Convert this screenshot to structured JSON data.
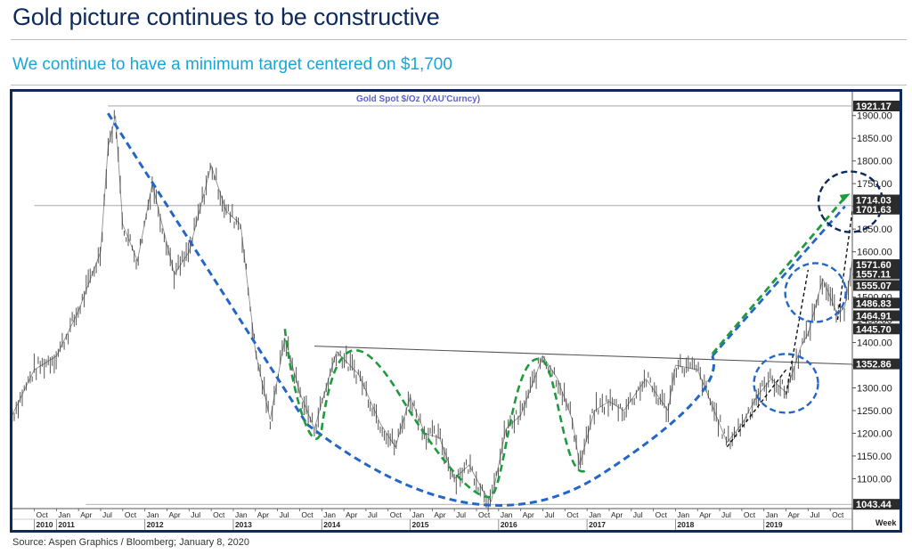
{
  "header": {
    "title": "Gold picture continues to be constructive",
    "subtitle": "We continue to have a minimum target centered on $1,700"
  },
  "footer": {
    "source": "Source: Aspen Graphics / Bloomberg; January 8, 2020"
  },
  "chart_data": {
    "type": "line",
    "title": "Gold  Spot      $/Oz  (XAU'Curncy)",
    "x_unit_label": "Week",
    "ylim": [
      1040,
      1925
    ],
    "y_ticks": [
      1100,
      1150,
      1200,
      1250,
      1300,
      1350,
      1400,
      1450,
      1500,
      1550,
      1600,
      1650,
      1700,
      1750,
      1800,
      1850,
      1900
    ],
    "y_tick_labels": [
      "1100.00",
      "1150.00",
      "1200.00",
      "1250.00",
      "1300.00",
      "1350.00",
      "1400.00",
      "1450.00",
      "1500.00",
      "1550.00",
      "1600.00",
      "1650.00",
      "1700.00",
      "1750.00",
      "1800.00",
      "1850.00",
      "1900.00"
    ],
    "price_labels": [
      "1921.17",
      "1714.03",
      "1701.63",
      "1571.60",
      "1557.11",
      "1555.07",
      "1486.83",
      "1464.91",
      "1445.70",
      "1352.86",
      "1043.44"
    ],
    "x_months": [
      {
        "x": "2010-10",
        "label": "Oct"
      },
      {
        "x": "2011-01",
        "label": "Jan"
      },
      {
        "x": "2011-04",
        "label": "Apr"
      },
      {
        "x": "2011-07",
        "label": "Jul"
      },
      {
        "x": "2011-10",
        "label": "Oct"
      },
      {
        "x": "2012-01",
        "label": "Jan"
      },
      {
        "x": "2012-04",
        "label": "Apr"
      },
      {
        "x": "2012-07",
        "label": "Jul"
      },
      {
        "x": "2012-10",
        "label": "Oct"
      },
      {
        "x": "2013-01",
        "label": "Jan"
      },
      {
        "x": "2013-04",
        "label": "Apr"
      },
      {
        "x": "2013-07",
        "label": "Jul"
      },
      {
        "x": "2013-10",
        "label": "Oct"
      },
      {
        "x": "2014-01",
        "label": "Jan"
      },
      {
        "x": "2014-04",
        "label": "Apr"
      },
      {
        "x": "2014-07",
        "label": "Jul"
      },
      {
        "x": "2014-10",
        "label": "Oct"
      },
      {
        "x": "2015-01",
        "label": "Jan"
      },
      {
        "x": "2015-04",
        "label": "Apr"
      },
      {
        "x": "2015-07",
        "label": "Jul"
      },
      {
        "x": "2015-10",
        "label": "Oct"
      },
      {
        "x": "2016-01",
        "label": "Jan"
      },
      {
        "x": "2016-04",
        "label": "Apr"
      },
      {
        "x": "2016-07",
        "label": "Jul"
      },
      {
        "x": "2016-10",
        "label": "Oct"
      },
      {
        "x": "2017-01",
        "label": "Jan"
      },
      {
        "x": "2017-04",
        "label": "Apr"
      },
      {
        "x": "2017-07",
        "label": "Jul"
      },
      {
        "x": "2017-10",
        "label": "Oct"
      },
      {
        "x": "2018-01",
        "label": "Jan"
      },
      {
        "x": "2018-04",
        "label": "Apr"
      },
      {
        "x": "2018-07",
        "label": "Jul"
      },
      {
        "x": "2018-10",
        "label": "Oct"
      },
      {
        "x": "2019-01",
        "label": "Jan"
      },
      {
        "x": "2019-04",
        "label": "Apr"
      },
      {
        "x": "2019-07",
        "label": "Jul"
      },
      {
        "x": "2019-10",
        "label": "Oct"
      }
    ],
    "x_years": [
      {
        "x": "2010-10",
        "label": "2010"
      },
      {
        "x": "2011-01",
        "label": "2011"
      },
      {
        "x": "2012-01",
        "label": "2012"
      },
      {
        "x": "2013-01",
        "label": "2013"
      },
      {
        "x": "2014-01",
        "label": "2014"
      },
      {
        "x": "2015-01",
        "label": "2015"
      },
      {
        "x": "2016-01",
        "label": "2016"
      },
      {
        "x": "2017-01",
        "label": "2017"
      },
      {
        "x": "2018-01",
        "label": "2018"
      },
      {
        "x": "2019-01",
        "label": "2019"
      }
    ],
    "series": [
      {
        "x": [
          "2010-07",
          "2010-10",
          "2011-01",
          "2011-04",
          "2011-07",
          "2011-08",
          "2011-09",
          "2011-10",
          "2011-12",
          "2012-02",
          "2012-05",
          "2012-07",
          "2012-10",
          "2012-12",
          "2013-02",
          "2013-04",
          "2013-06",
          "2013-08",
          "2013-10",
          "2013-12",
          "2014-03",
          "2014-06",
          "2014-09",
          "2014-11",
          "2015-01",
          "2015-03",
          "2015-05",
          "2015-07",
          "2015-09",
          "2015-11",
          "2015-12",
          "2016-02",
          "2016-04",
          "2016-07",
          "2016-09",
          "2016-11",
          "2016-12",
          "2017-02",
          "2017-04",
          "2017-06",
          "2017-09",
          "2017-12",
          "2018-01",
          "2018-04",
          "2018-06",
          "2018-08",
          "2018-10",
          "2018-12",
          "2019-02",
          "2019-04",
          "2019-06",
          "2019-07",
          "2019-09",
          "2019-10",
          "2019-11",
          "2019-12",
          "2020-01"
        ],
        "values": [
          1240,
          1340,
          1370,
          1470,
          1600,
          1830,
          1900,
          1660,
          1580,
          1750,
          1550,
          1600,
          1790,
          1690,
          1660,
          1380,
          1230,
          1410,
          1290,
          1210,
          1380,
          1330,
          1220,
          1170,
          1280,
          1200,
          1190,
          1100,
          1130,
          1070,
          1050,
          1210,
          1240,
          1370,
          1320,
          1230,
          1130,
          1250,
          1270,
          1250,
          1320,
          1250,
          1350,
          1340,
          1260,
          1180,
          1220,
          1280,
          1320,
          1290,
          1390,
          1420,
          1540,
          1500,
          1460,
          1480,
          1580
        ]
      }
    ],
    "reference_levels": [
      {
        "name": "target",
        "value": 1701.63
      },
      {
        "name": "2011 high",
        "value": 1921.17
      },
      {
        "name": "2015 low",
        "value": 1043.44
      }
    ]
  }
}
